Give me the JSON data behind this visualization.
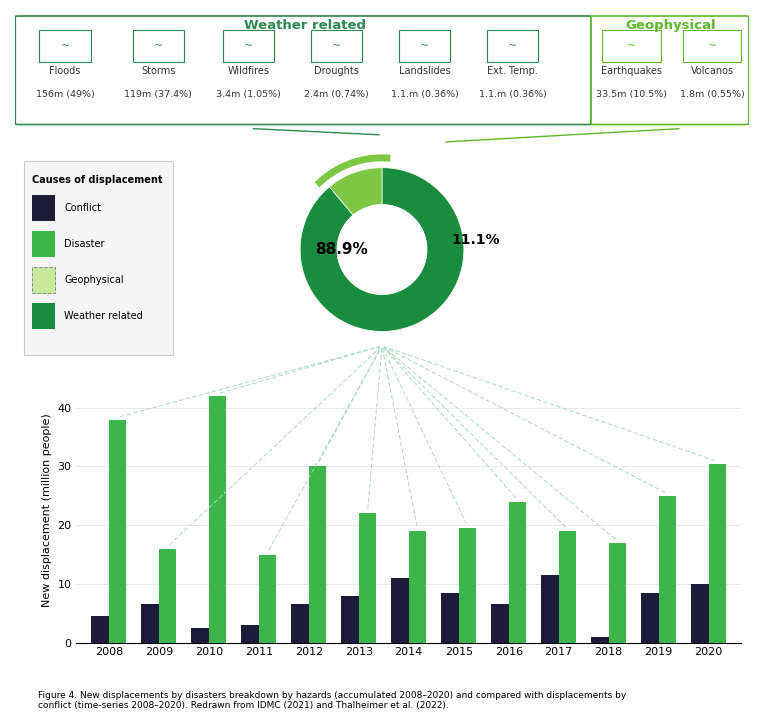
{
  "weather_categories": [
    "Floods",
    "Storms",
    "Wildfires",
    "Droughts",
    "Landslides",
    "Ext. Temp."
  ],
  "weather_values": [
    "156m (49%)",
    "119m (37.4%)",
    "3.4m (1.05%)",
    "2.4m (0.74%)",
    "1.1.m (0.36%)",
    "1.1.m (0.36%)"
  ],
  "geo_categories": [
    "Earthquakes",
    "Volcanos"
  ],
  "geo_values": [
    "33.5m (10.5%)",
    "1.8m (0.55%)"
  ],
  "donut_weather": 88.9,
  "donut_geo": 11.1,
  "donut_color_weather": "#1a8c3e",
  "donut_color_geo": "#7dc743",
  "donut_ring_color": "#1a6b2e",
  "donut_ring_geo_color": "#7dc743",
  "years": [
    2008,
    2009,
    2010,
    2011,
    2012,
    2013,
    2014,
    2015,
    2016,
    2017,
    2018,
    2019,
    2020
  ],
  "conflict_values": [
    4.5,
    6.5,
    2.5,
    3.0,
    6.5,
    8.0,
    11.0,
    8.5,
    6.5,
    11.5,
    1.0,
    8.5,
    10.0
  ],
  "disaster_values": [
    38.0,
    16.0,
    42.0,
    15.0,
    30.0,
    22.0,
    19.0,
    19.5,
    24.0,
    19.0,
    17.0,
    25.0,
    30.5
  ],
  "conflict_color": "#1c1c3a",
  "disaster_color": "#3cb54a",
  "bar_width": 0.35,
  "ylabel": "New displacement (million people)",
  "figure_caption": "Figure 4. New displacements by disasters breakdown by hazards (accumulated 2008–2020) and compared with displacements by\nconflict (time-series 2008–2020). Redrawn from IDMC (2021) and Thalheimer et al. (2022).",
  "weather_header_color": "#2d8a4e",
  "geo_header_color": "#5cb829",
  "legend_items": [
    "Conflict",
    "Disaster",
    "Geophysical",
    "Weather related"
  ],
  "legend_colors": [
    "#1c1c3a",
    "#3cb54a",
    "#a8d878",
    "#1a8c3e"
  ],
  "background_color": "#ffffff",
  "dash_line_color": "#a8d8c0",
  "header_line_color": "#2d8a4e",
  "weather_icon_color": "#2d8a4e",
  "geo_icon_color": "#5cb829"
}
